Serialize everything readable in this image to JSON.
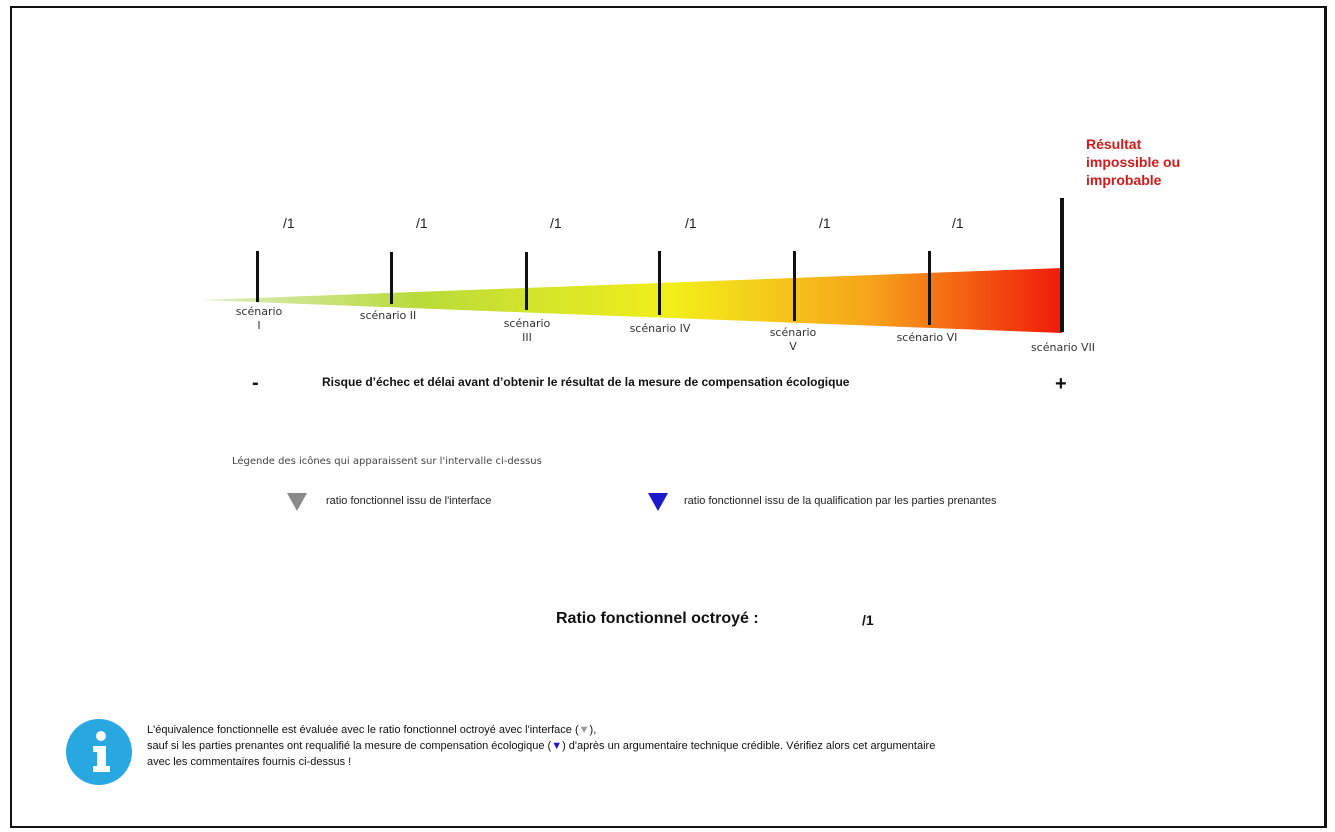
{
  "header_note": "",
  "ratios": [
    "/1",
    "/1",
    "/1",
    "/1",
    "/1",
    "/1"
  ],
  "scenarios": [
    "scénario\nI",
    "scénario II",
    "scénario\nIII",
    "scénario IV",
    "scénario\nV",
    "scénario VI",
    "scénario VII"
  ],
  "impossible_label": "Résultat\nimpossible ou\nimprobable",
  "axis": {
    "minus": "-",
    "plus": "+",
    "label": "Risque d’échec et délai avant d’obtenir le résultat de la mesure de compensation écologique"
  },
  "legend": {
    "title": "Légende des icônes qui apparaissent sur l'intervalle ci-dessus",
    "gray_text": "ratio fonctionnel issu de l'interface",
    "blue_text": "ratio fonctionnel issu de la qualification par les parties prenantes"
  },
  "granted": {
    "label": "Ratio fonctionnel octroyé :",
    "value": "/1"
  },
  "info": {
    "line1_a": "L'équivalence fonctionnelle est évaluée avec le ratio fonctionnel octroyé avec l'interface (",
    "line1_icon": "▼",
    "line1_b": "),",
    "line2_a": "sauf si les parties prenantes ont requalifié la mesure de compensation écologique (",
    "line2_icon": "▼",
    "line2_b": ") d'après un argumentaire technique crédible. Vérifiez alors cet argumentaire",
    "line3": "avec les commentaires fournis ci-dessus !"
  },
  "colors": {
    "gradient_start": "#dfeecb",
    "gradient_mid1": "#b8db3a",
    "gradient_mid2": "#f3ee1a",
    "gradient_mid3": "#f7a21a",
    "gradient_end": "#f01a0a",
    "impossible_red": "#d11a1a",
    "gray_marker": "#8a8a8a",
    "blue_marker": "#1a1acc",
    "info_blue": "#29a7e1"
  }
}
